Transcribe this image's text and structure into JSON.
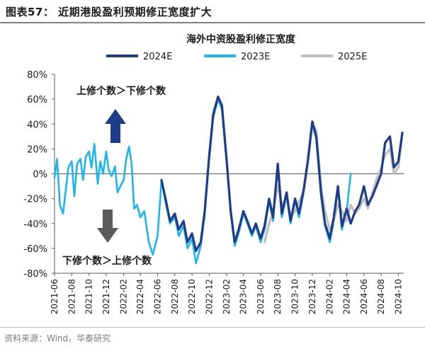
{
  "figure": {
    "title": "图表57： 近期港股盈利预期修正宽度扩大",
    "source": "资料来源：Wind，华泰研究"
  },
  "chart_data": {
    "type": "line",
    "title": "海外中资股盈利修正宽度",
    "xlabel": "",
    "ylabel": "",
    "ylim": [
      -80,
      80
    ],
    "yticks": [
      "80%",
      "60%",
      "40%",
      "20%",
      "0%",
      "-20%",
      "-40%",
      "-60%",
      "-80%"
    ],
    "ytick_values": [
      80,
      60,
      40,
      20,
      0,
      -20,
      -40,
      -60,
      -80
    ],
    "xticks": [
      "2021-06",
      "2021-08",
      "2021-10",
      "2021-12",
      "2022-02",
      "2022-04",
      "2022-06",
      "2022-08",
      "2022-10",
      "2022-12",
      "2023-02",
      "2023-04",
      "2023-06",
      "2023-08",
      "2023-10",
      "2023-12",
      "2024-02",
      "2024-04",
      "2024-06",
      "2024-08",
      "2024-10"
    ],
    "legend_position": "top",
    "annotations": {
      "up_text": "上修个数＞下修个数",
      "down_text": "下修个数＞上修个数"
    },
    "colors": {
      "2024E": "#1f3c88",
      "2023E": "#1eb4ec",
      "2025E": "#bfbfbf",
      "up_arrow": "#1f3c88",
      "down_arrow": "#5a5a5a"
    },
    "series": [
      {
        "name": "2024E",
        "points": [
          [
            "2022-06-15",
            -5
          ],
          [
            "2022-07-01",
            -22
          ],
          [
            "2022-07-15",
            -38
          ],
          [
            "2022-08-01",
            -32
          ],
          [
            "2022-08-15",
            -45
          ],
          [
            "2022-09-01",
            -38
          ],
          [
            "2022-09-15",
            -55
          ],
          [
            "2022-10-01",
            -48
          ],
          [
            "2022-10-15",
            -62
          ],
          [
            "2022-11-01",
            -55
          ],
          [
            "2022-11-15",
            -30
          ],
          [
            "2022-12-01",
            15
          ],
          [
            "2022-12-15",
            48
          ],
          [
            "2023-01-01",
            62
          ],
          [
            "2023-01-15",
            55
          ],
          [
            "2023-02-01",
            10
          ],
          [
            "2023-02-15",
            -30
          ],
          [
            "2023-03-01",
            -55
          ],
          [
            "2023-03-15",
            -45
          ],
          [
            "2023-04-01",
            -30
          ],
          [
            "2023-04-15",
            -38
          ],
          [
            "2023-05-01",
            -48
          ],
          [
            "2023-05-15",
            -40
          ],
          [
            "2023-06-01",
            -52
          ],
          [
            "2023-06-15",
            -42
          ],
          [
            "2023-07-01",
            -20
          ],
          [
            "2023-07-15",
            -35
          ],
          [
            "2023-08-01",
            8
          ],
          [
            "2023-08-15",
            -32
          ],
          [
            "2023-09-01",
            -15
          ],
          [
            "2023-09-15",
            -38
          ],
          [
            "2023-10-01",
            -20
          ],
          [
            "2023-10-15",
            -32
          ],
          [
            "2023-11-01",
            -12
          ],
          [
            "2023-11-15",
            10
          ],
          [
            "2023-12-01",
            42
          ],
          [
            "2023-12-15",
            30
          ],
          [
            "2024-01-01",
            -15
          ],
          [
            "2024-01-15",
            -40
          ],
          [
            "2024-02-01",
            -52
          ],
          [
            "2024-02-15",
            -35
          ],
          [
            "2024-03-01",
            -10
          ],
          [
            "2024-03-15",
            -42
          ],
          [
            "2024-04-01",
            -28
          ],
          [
            "2024-04-15",
            -40
          ],
          [
            "2024-05-01",
            -30
          ],
          [
            "2024-05-15",
            -25
          ],
          [
            "2024-06-01",
            -10
          ],
          [
            "2024-06-15",
            -25
          ],
          [
            "2024-07-01",
            -18
          ],
          [
            "2024-07-15",
            -10
          ],
          [
            "2024-08-01",
            0
          ],
          [
            "2024-08-15",
            25
          ],
          [
            "2024-09-01",
            30
          ],
          [
            "2024-09-15",
            5
          ],
          [
            "2024-10-01",
            10
          ],
          [
            "2024-10-15",
            33
          ]
        ]
      },
      {
        "name": "2023E",
        "points": [
          [
            "2021-06-01",
            -3
          ],
          [
            "2021-06-10",
            12
          ],
          [
            "2021-06-20",
            -25
          ],
          [
            "2021-07-01",
            -32
          ],
          [
            "2021-07-10",
            -15
          ],
          [
            "2021-07-20",
            5
          ],
          [
            "2021-08-01",
            10
          ],
          [
            "2021-08-10",
            -18
          ],
          [
            "2021-08-20",
            8
          ],
          [
            "2021-09-01",
            12
          ],
          [
            "2021-09-10",
            -5
          ],
          [
            "2021-09-20",
            14
          ],
          [
            "2021-10-01",
            18
          ],
          [
            "2021-10-10",
            5
          ],
          [
            "2021-10-20",
            24
          ],
          [
            "2021-11-01",
            -8
          ],
          [
            "2021-11-10",
            10
          ],
          [
            "2021-11-20",
            0
          ],
          [
            "2021-12-01",
            18
          ],
          [
            "2021-12-10",
            3
          ],
          [
            "2021-12-20",
            -2
          ],
          [
            "2022-01-01",
            6
          ],
          [
            "2022-01-10",
            -15
          ],
          [
            "2022-01-20",
            -10
          ],
          [
            "2022-02-01",
            -5
          ],
          [
            "2022-02-10",
            12
          ],
          [
            "2022-02-20",
            22
          ],
          [
            "2022-03-01",
            8
          ],
          [
            "2022-03-10",
            -28
          ],
          [
            "2022-03-20",
            -25
          ],
          [
            "2022-04-01",
            -35
          ],
          [
            "2022-04-15",
            -30
          ],
          [
            "2022-05-01",
            -55
          ],
          [
            "2022-05-15",
            -65
          ],
          [
            "2022-06-01",
            -50
          ],
          [
            "2022-06-15",
            -5
          ],
          [
            "2022-07-01",
            -25
          ],
          [
            "2022-07-15",
            -40
          ],
          [
            "2022-08-01",
            -35
          ],
          [
            "2022-08-15",
            -50
          ],
          [
            "2022-09-01",
            -42
          ],
          [
            "2022-09-15",
            -60
          ],
          [
            "2022-10-01",
            -52
          ],
          [
            "2022-10-15",
            -72
          ],
          [
            "2022-11-01",
            -58
          ],
          [
            "2022-11-15",
            -33
          ],
          [
            "2022-12-01",
            12
          ],
          [
            "2022-12-15",
            45
          ],
          [
            "2023-01-01",
            60
          ],
          [
            "2023-01-15",
            52
          ],
          [
            "2023-02-01",
            8
          ],
          [
            "2023-02-15",
            -32
          ],
          [
            "2023-03-01",
            -58
          ],
          [
            "2023-03-15",
            -48
          ],
          [
            "2023-04-01",
            -32
          ],
          [
            "2023-04-15",
            -40
          ],
          [
            "2023-05-01",
            -50
          ],
          [
            "2023-05-15",
            -42
          ],
          [
            "2023-06-01",
            -55
          ],
          [
            "2023-06-15",
            -45
          ],
          [
            "2023-07-01",
            -22
          ],
          [
            "2023-07-15",
            -38
          ],
          [
            "2023-08-01",
            5
          ],
          [
            "2023-08-15",
            -35
          ],
          [
            "2023-09-01",
            -18
          ],
          [
            "2023-09-15",
            -40
          ],
          [
            "2023-10-01",
            -22
          ],
          [
            "2023-10-15",
            -35
          ],
          [
            "2023-11-01",
            -15
          ],
          [
            "2023-11-15",
            8
          ],
          [
            "2023-12-01",
            40
          ],
          [
            "2023-12-15",
            28
          ],
          [
            "2024-01-01",
            -18
          ],
          [
            "2024-01-15",
            -42
          ],
          [
            "2024-02-01",
            -55
          ],
          [
            "2024-02-15",
            -38
          ],
          [
            "2024-03-01",
            -12
          ],
          [
            "2024-03-15",
            -45
          ],
          [
            "2024-04-01",
            -30
          ],
          [
            "2024-04-15",
            0
          ]
        ]
      },
      {
        "name": "2025E",
        "points": [
          [
            "2023-06-15",
            -55
          ],
          [
            "2023-07-01",
            -40
          ],
          [
            "2023-07-15",
            -30
          ],
          [
            "2023-08-01",
            -10
          ],
          [
            "2023-08-15",
            -25
          ],
          [
            "2023-09-01",
            -20
          ],
          [
            "2023-09-15",
            -35
          ],
          [
            "2023-10-01",
            -30
          ],
          [
            "2023-10-15",
            -22
          ],
          [
            "2023-11-01",
            -15
          ],
          [
            "2023-11-15",
            8
          ],
          [
            "2023-12-01",
            40
          ],
          [
            "2023-12-15",
            35
          ],
          [
            "2024-01-01",
            -10
          ],
          [
            "2024-01-15",
            -30
          ],
          [
            "2024-02-01",
            -45
          ],
          [
            "2024-02-15",
            -38
          ],
          [
            "2024-03-01",
            -25
          ],
          [
            "2024-03-15",
            -30
          ],
          [
            "2024-04-01",
            -38
          ],
          [
            "2024-04-15",
            -25
          ],
          [
            "2024-05-01",
            -32
          ],
          [
            "2024-05-15",
            -28
          ],
          [
            "2024-06-01",
            -20
          ],
          [
            "2024-06-15",
            -28
          ],
          [
            "2024-07-01",
            -15
          ],
          [
            "2024-07-15",
            -5
          ],
          [
            "2024-08-01",
            5
          ],
          [
            "2024-08-15",
            15
          ],
          [
            "2024-09-01",
            20
          ],
          [
            "2024-09-15",
            0
          ],
          [
            "2024-10-01",
            5
          ],
          [
            "2024-10-15",
            32
          ]
        ]
      }
    ]
  }
}
